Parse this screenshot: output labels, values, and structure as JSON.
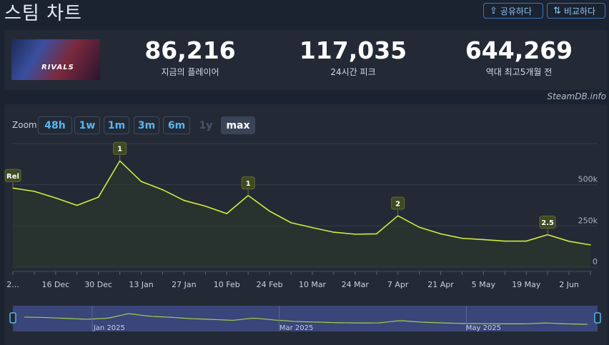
{
  "header": {
    "title": "스팀 차트",
    "share_label": "공유하다",
    "compare_label": "비교하다"
  },
  "game": {
    "logo_text": "RIVALS"
  },
  "stats": [
    {
      "value": "86,216",
      "label": "지금의 플레이어"
    },
    {
      "value": "117,035",
      "label": "24시간 피크"
    },
    {
      "value": "644,269",
      "label": "역대 최고5개월 전"
    }
  ],
  "credit": "SteamDB.info",
  "zoom": {
    "label": "Zoom",
    "options": [
      "48h",
      "1w",
      "1m",
      "3m",
      "6m",
      "1y",
      "max"
    ],
    "active": "max",
    "disabled": [
      "1y"
    ]
  },
  "colors": {
    "line": "#cfee3a",
    "accent": "#55b7f0",
    "navigator_bg": "#3e4a85"
  },
  "chart_data": {
    "type": "line",
    "x": [
      "2...",
      "",
      "16 Dec",
      "",
      "30 Dec",
      "",
      "13 Jan",
      "",
      "27 Jan",
      "",
      "10 Feb",
      "",
      "24 Feb",
      "",
      "10 Mar",
      "",
      "24 Mar",
      "",
      "7 Apr",
      "",
      "21 Apr",
      "",
      "5 May",
      "",
      "19 May",
      "",
      "2 Jun",
      ""
    ],
    "values": [
      480000,
      460000,
      420000,
      375000,
      425000,
      645000,
      520000,
      470000,
      405000,
      370000,
      325000,
      435000,
      340000,
      270000,
      240000,
      212000,
      200000,
      202000,
      312000,
      242000,
      202000,
      175000,
      167000,
      158000,
      158000,
      197000,
      157000,
      135000
    ],
    "xtick_labels": [
      "2...",
      "16 Dec",
      "30 Dec",
      "13 Jan",
      "27 Jan",
      "10 Feb",
      "24 Feb",
      "10 Mar",
      "24 Mar",
      "7 Apr",
      "21 Apr",
      "5 May",
      "19 May",
      "2 Jun"
    ],
    "yticks": [
      0,
      250000,
      500000
    ],
    "ytick_labels": [
      "0",
      "250k",
      "500k"
    ],
    "ylim": [
      0,
      750000
    ],
    "annotations": [
      {
        "index": 0,
        "text": "Rel"
      },
      {
        "index": 5,
        "text": "1"
      },
      {
        "index": 11,
        "text": "1"
      },
      {
        "index": 18,
        "text": "2"
      },
      {
        "index": 25,
        "text": "2.5"
      }
    ],
    "navigator_labels": [
      "Jan 2025",
      "Mar 2025",
      "May 2025"
    ],
    "grid": true,
    "legend": "none"
  }
}
